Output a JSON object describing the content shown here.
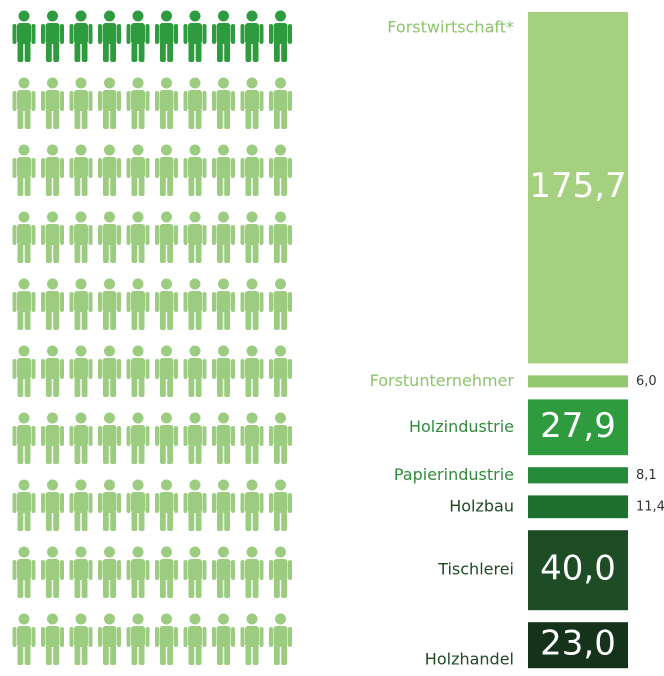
{
  "chart_data": {
    "type": "stacked-bar",
    "categories": [
      "Forstwirtschaft*",
      "Forstunternehmer",
      "Holzindustrie",
      "Papierindustrie",
      "Holzbau",
      "Tischlerei",
      "Holzhandel"
    ],
    "values": [
      175.7,
      6.0,
      27.9,
      8.1,
      11.4,
      40.0,
      23.0
    ],
    "value_labels": [
      "175,7",
      "6,0",
      "27,9",
      "8,1",
      "11,4",
      "40,0",
      "23,0"
    ],
    "colors": [
      "#a5d07f",
      "#93c870",
      "#2f9b3f",
      "#27893a",
      "#1f6f2e",
      "#1e4c24",
      "#15321b"
    ]
  }
}
